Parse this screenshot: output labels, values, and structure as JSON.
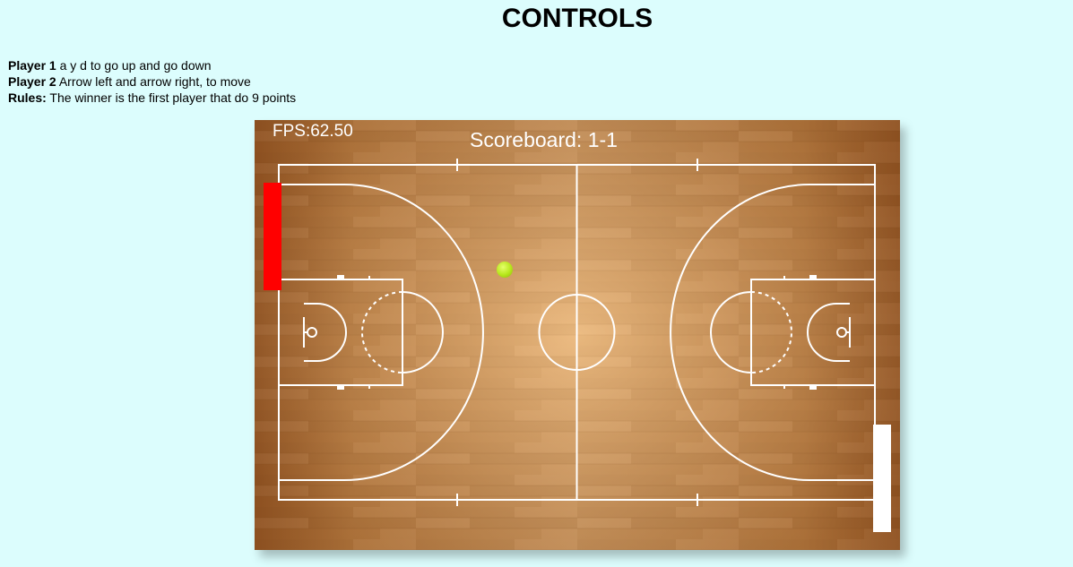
{
  "page": {
    "title": "CONTROLS"
  },
  "instructions": [
    {
      "label": "Player 1",
      "text": " a y d to go up and go down"
    },
    {
      "label": "Player 2",
      "text": " Arrow left and arrow right, to move"
    },
    {
      "label": "Rules:",
      "text": " The winner is the first player that do 9 points"
    }
  ],
  "game": {
    "fps_text": "FPS:62.50",
    "scoreboard_text": "Scoreboard: 1-1",
    "colors": {
      "background": "#dcfdfd",
      "court_wood": "#c98a4b",
      "court_lines": "#ffffff",
      "player1_paddle": "#ff0000",
      "player2_paddle": "#ffffff",
      "ball": "#b6e61a"
    }
  }
}
